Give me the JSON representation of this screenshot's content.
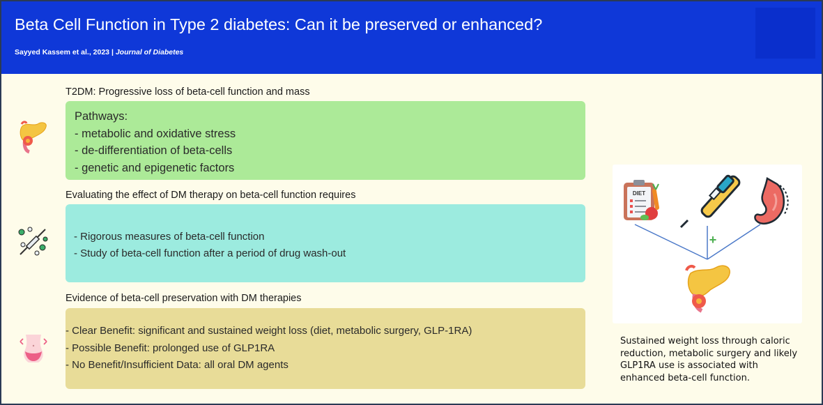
{
  "header": {
    "title": "Beta Cell Function in Type 2 diabetes: Can it be preserved or enhanced?",
    "authors": "Sayyed Kassem et al., 2023",
    "separator": "|",
    "journal": "Journal of Diabetes",
    "background": "#0f38d8"
  },
  "sections": {
    "s1": {
      "heading": "T2DM: Progressive loss of beta-cell function and mass",
      "lines": [
        "Pathways:",
        "- metabolic and oxidative stress",
        "- de-differentiation of beta-cells",
        "- genetic and epigenetic factors"
      ],
      "color": "#acea98",
      "icon": "pancreas-icon"
    },
    "s2": {
      "heading": "Evaluating the effect of DM therapy on beta-cell function requires",
      "lines": [
        "- Rigorous measures of beta-cell function",
        "- Study of beta-cell function after a period of drug wash-out"
      ],
      "color": "#9cebdf",
      "icon": "syringe-pills-icon"
    },
    "s3": {
      "heading": "Evidence of beta-cell preservation with DM therapies",
      "lines": [
        "- Clear Benefit:  significant and sustained weight loss (diet, metabolic surgery, GLP-1RA)",
        "- Possible Benefit: prolonged use of GLP1RA",
        "- No Benefit/Insufficient Data: all oral DM agents"
      ],
      "color": "#e8dc98",
      "icon": "waist-weight-loss-icon"
    }
  },
  "panel": {
    "diet_label": "DIET",
    "plus": "+",
    "icons": [
      "diet-clipboard-icon",
      "insulin-pen-icon",
      "stomach-surgery-icon",
      "pancreas-icon"
    ]
  },
  "caption": "Sustained weight loss through caloric reduction, metabolic surgery and likely GLP1RA use is associated with enhanced beta-cell function."
}
